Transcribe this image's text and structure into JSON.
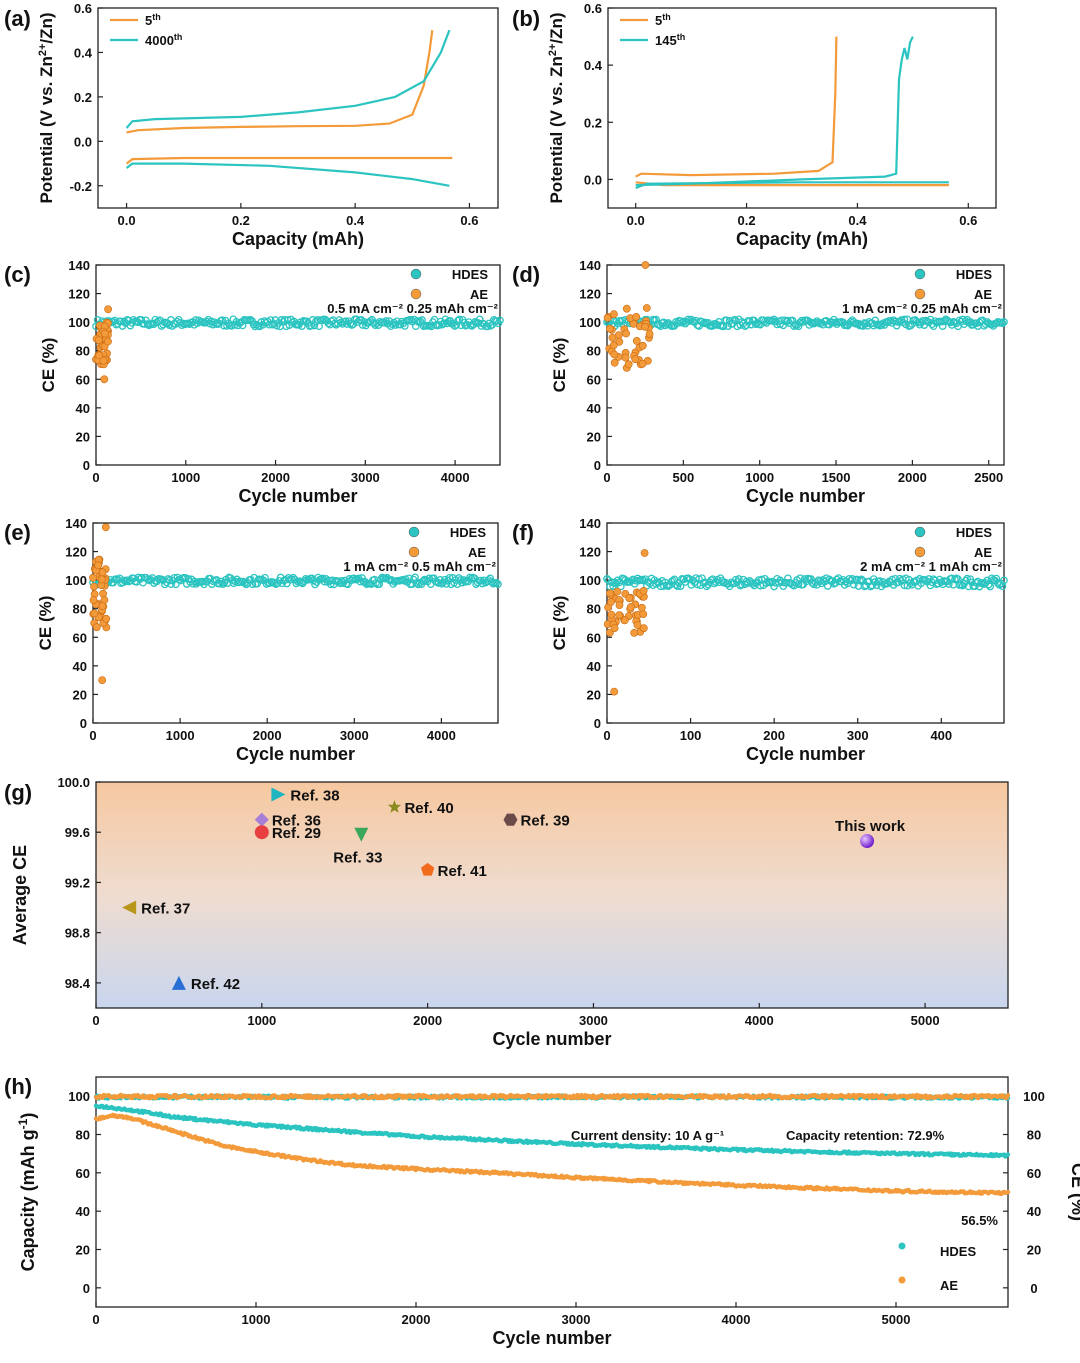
{
  "chart_data": [
    {
      "id": "a",
      "type": "line",
      "panel_label": "(a)",
      "xlabel": "Capacity (mAh)",
      "ylabel": "Potential (V vs. Zn",
      "xlim": [
        -0.05,
        0.65
      ],
      "ylim": [
        -0.3,
        0.6
      ],
      "xticks": [
        "0.0",
        "0.2",
        "0.4",
        "0.6"
      ],
      "yticks": [
        "-0.2",
        "0.0",
        "0.2",
        "0.4",
        "0.6"
      ],
      "xtick_values": [
        0.0,
        0.2,
        0.4,
        0.6
      ],
      "ytick_values": [
        -0.2,
        0.0,
        0.2,
        0.4,
        0.6
      ],
      "series": [
        {
          "name": "5",
          "sup": "th",
          "color": "#f39a3a",
          "charge": [
            [
              0.0,
              0.04
            ],
            [
              0.02,
              0.05
            ],
            [
              0.1,
              0.06
            ],
            [
              0.2,
              0.065
            ],
            [
              0.3,
              0.068
            ],
            [
              0.4,
              0.07
            ],
            [
              0.46,
              0.08
            ],
            [
              0.5,
              0.12
            ],
            [
              0.52,
              0.25
            ],
            [
              0.53,
              0.4
            ],
            [
              0.535,
              0.5
            ]
          ],
          "discharge": [
            [
              0.0,
              -0.1
            ],
            [
              0.01,
              -0.08
            ],
            [
              0.1,
              -0.075
            ],
            [
              0.3,
              -0.075
            ],
            [
              0.45,
              -0.075
            ],
            [
              0.57,
              -0.075
            ]
          ]
        },
        {
          "name": "4000",
          "sup": "th",
          "color": "#2bc4c0",
          "charge": [
            [
              0.0,
              0.06
            ],
            [
              0.01,
              0.09
            ],
            [
              0.05,
              0.1
            ],
            [
              0.2,
              0.11
            ],
            [
              0.3,
              0.13
            ],
            [
              0.4,
              0.16
            ],
            [
              0.47,
              0.2
            ],
            [
              0.52,
              0.27
            ],
            [
              0.55,
              0.4
            ],
            [
              0.565,
              0.5
            ]
          ],
          "discharge": [
            [
              0.0,
              -0.12
            ],
            [
              0.01,
              -0.1
            ],
            [
              0.1,
              -0.1
            ],
            [
              0.25,
              -0.11
            ],
            [
              0.4,
              -0.14
            ],
            [
              0.5,
              -0.17
            ],
            [
              0.565,
              -0.2
            ]
          ]
        }
      ]
    },
    {
      "id": "b",
      "type": "line",
      "panel_label": "(b)",
      "xlabel": "Capacity (mAh)",
      "ylabel": "Potential (V vs. Zn",
      "xlim": [
        -0.05,
        0.65
      ],
      "ylim": [
        -0.1,
        0.6
      ],
      "xticks": [
        "0.0",
        "0.2",
        "0.4",
        "0.6"
      ],
      "yticks": [
        "0.0",
        "0.2",
        "0.4",
        "0.6"
      ],
      "xtick_values": [
        0.0,
        0.2,
        0.4,
        0.6
      ],
      "ytick_values": [
        0.0,
        0.2,
        0.4,
        0.6
      ],
      "series": [
        {
          "name": "5",
          "sup": "th",
          "color": "#f39a3a",
          "charge": [
            [
              0.0,
              0.01
            ],
            [
              0.01,
              0.02
            ],
            [
              0.1,
              0.015
            ],
            [
              0.25,
              0.02
            ],
            [
              0.33,
              0.03
            ],
            [
              0.355,
              0.06
            ],
            [
              0.36,
              0.3
            ],
            [
              0.362,
              0.5
            ]
          ],
          "discharge": [
            [
              0.0,
              -0.01
            ],
            [
              0.05,
              -0.02
            ],
            [
              0.3,
              -0.02
            ],
            [
              0.565,
              -0.02
            ]
          ]
        },
        {
          "name": "145",
          "sup": "th",
          "color": "#2bc4c0",
          "charge": [
            [
              0.0,
              -0.02
            ],
            [
              0.1,
              -0.015
            ],
            [
              0.3,
              0.0
            ],
            [
              0.45,
              0.01
            ],
            [
              0.47,
              0.02
            ],
            [
              0.475,
              0.35
            ],
            [
              0.48,
              0.42
            ],
            [
              0.485,
              0.46
            ],
            [
              0.49,
              0.42
            ],
            [
              0.495,
              0.48
            ],
            [
              0.5,
              0.5
            ]
          ],
          "discharge": [
            [
              0.0,
              -0.03
            ],
            [
              0.02,
              -0.015
            ],
            [
              0.3,
              -0.01
            ],
            [
              0.565,
              -0.01
            ]
          ]
        }
      ]
    },
    {
      "id": "c",
      "type": "scatter",
      "panel_label": "(c)",
      "xlabel": "Cycle number",
      "ylabel": "CE (%)",
      "xlim": [
        0,
        4500
      ],
      "ylim": [
        0,
        140
      ],
      "xticks": [
        "0",
        "1000",
        "2000",
        "3000",
        "4000"
      ],
      "xtick_values": [
        0,
        1000,
        2000,
        3000,
        4000
      ],
      "yticks": [
        "0",
        "20",
        "40",
        "60",
        "80",
        "100",
        "120",
        "140"
      ],
      "ytick_values": [
        0,
        20,
        40,
        60,
        80,
        100,
        120,
        140
      ],
      "condition": "0.5 mA cm⁻² 0.25 mAh cm⁻²",
      "series": [
        {
          "name": "HDES",
          "color": "#2bc4c0",
          "x_range": [
            0,
            4500
          ],
          "mean": 99.5,
          "spread": 2.5
        },
        {
          "name": "AE",
          "color": "#f39a3a",
          "x_range": [
            0,
            140
          ],
          "mean": 85,
          "spread": 15,
          "max": 109,
          "min": 60
        }
      ]
    },
    {
      "id": "d",
      "type": "scatter",
      "panel_label": "(d)",
      "xlabel": "Cycle number",
      "ylabel": "CE (%)",
      "xlim": [
        0,
        2600
      ],
      "ylim": [
        0,
        140
      ],
      "xticks": [
        "0",
        "500",
        "1000",
        "1500",
        "2000",
        "2500"
      ],
      "xtick_values": [
        0,
        500,
        1000,
        1500,
        2000,
        2500
      ],
      "yticks": [
        "0",
        "20",
        "40",
        "60",
        "80",
        "100",
        "120",
        "140"
      ],
      "ytick_values": [
        0,
        20,
        40,
        60,
        80,
        100,
        120,
        140
      ],
      "condition": "1 mA cm⁻² 0.25 mAh cm⁻²",
      "series": [
        {
          "name": "HDES",
          "color": "#2bc4c0",
          "x_range": [
            0,
            2600
          ],
          "mean": 99.5,
          "spread": 2.5
        },
        {
          "name": "AE",
          "color": "#f39a3a",
          "x_range": [
            0,
            280
          ],
          "mean": 90,
          "spread": 20,
          "max": 140,
          "min": 68
        }
      ]
    },
    {
      "id": "e",
      "type": "scatter",
      "panel_label": "(e)",
      "xlabel": "Cycle number",
      "ylabel": "CE (%)",
      "xlim": [
        0,
        4650
      ],
      "ylim": [
        0,
        140
      ],
      "xticks": [
        "0",
        "1000",
        "2000",
        "3000",
        "4000"
      ],
      "xtick_values": [
        0,
        1000,
        2000,
        3000,
        4000
      ],
      "yticks": [
        "0",
        "20",
        "40",
        "60",
        "80",
        "100",
        "120",
        "140"
      ],
      "ytick_values": [
        0,
        20,
        40,
        60,
        80,
        100,
        120,
        140
      ],
      "condition": "1 mA cm⁻² 0.5 mAh cm⁻²",
      "series": [
        {
          "name": "HDES",
          "color": "#2bc4c0",
          "x_range": [
            0,
            4650
          ],
          "mean": 99.5,
          "spread": 2.5
        },
        {
          "name": "AE",
          "color": "#f39a3a",
          "x_range": [
            0,
            160
          ],
          "mean": 90,
          "spread": 25,
          "max": 137,
          "min": 30
        }
      ]
    },
    {
      "id": "f",
      "type": "scatter",
      "panel_label": "(f)",
      "xlabel": "Cycle number",
      "ylabel": "CE (%)",
      "xlim": [
        0,
        475
      ],
      "ylim": [
        0,
        140
      ],
      "xticks": [
        "0",
        "100",
        "200",
        "300",
        "400"
      ],
      "xtick_values": [
        0,
        100,
        200,
        300,
        400
      ],
      "yticks": [
        "0",
        "20",
        "40",
        "60",
        "80",
        "100",
        "120",
        "140"
      ],
      "ytick_values": [
        0,
        20,
        40,
        60,
        80,
        100,
        120,
        140
      ],
      "condition": "2 mA cm⁻² 1 mAh cm⁻²",
      "series": [
        {
          "name": "HDES",
          "color": "#2bc4c0",
          "x_range": [
            0,
            475
          ],
          "mean": 98.5,
          "spread": 3
        },
        {
          "name": "AE",
          "color": "#f39a3a",
          "x_range": [
            0,
            45
          ],
          "mean": 78,
          "spread": 15,
          "max": 119,
          "min": 22
        }
      ]
    },
    {
      "id": "g",
      "type": "scatter",
      "panel_label": "(g)",
      "xlabel": "Cycle number",
      "ylabel": "Average CE",
      "xlim": [
        0,
        5500
      ],
      "ylim": [
        98.2,
        100.0
      ],
      "xticks": [
        "0",
        "1000",
        "2000",
        "3000",
        "4000",
        "5000"
      ],
      "xtick_values": [
        0,
        1000,
        2000,
        3000,
        4000,
        5000
      ],
      "yticks": [
        "98.4",
        "98.8",
        "99.2",
        "99.6",
        "100.0"
      ],
      "ytick_values": [
        98.4,
        98.8,
        99.2,
        99.6,
        100.0
      ],
      "points": [
        {
          "label": "Ref. 38",
          "x": 1100,
          "y": 99.9,
          "marker": "tri-right",
          "color": "#1fb5c0"
        },
        {
          "label": "Ref. 40",
          "x": 1800,
          "y": 99.8,
          "marker": "star",
          "color": "#8a8a1e"
        },
        {
          "label": "Ref. 39",
          "x": 2500,
          "y": 99.7,
          "marker": "hexagon",
          "color": "#6b4a4a"
        },
        {
          "label": "Ref. 36",
          "x": 1000,
          "y": 99.7,
          "marker": "diamond",
          "color": "#a77fd6"
        },
        {
          "label": "Ref. 29",
          "x": 1000,
          "y": 99.6,
          "marker": "circle",
          "color": "#e84040"
        },
        {
          "label": "Ref. 33",
          "x": 1600,
          "y": 99.58,
          "marker": "tri-down",
          "color": "#3aa85a"
        },
        {
          "label": "This work",
          "x": 4650,
          "y": 99.53,
          "marker": "sphere",
          "color": "#8a2be2"
        },
        {
          "label": "Ref. 41",
          "x": 2000,
          "y": 99.3,
          "marker": "pentagon",
          "color": "#f26b1d"
        },
        {
          "label": "Ref. 37",
          "x": 200,
          "y": 99.0,
          "marker": "tri-left",
          "color": "#b8961a"
        },
        {
          "label": "Ref. 42",
          "x": 500,
          "y": 98.4,
          "marker": "tri-up",
          "color": "#2a6fd6"
        }
      ]
    },
    {
      "id": "h",
      "type": "scatter",
      "panel_label": "(h)",
      "xlabel": "Cycle number",
      "ylabel": "Capacity (mAh g",
      "y2label": "CE (%)",
      "xlim": [
        0,
        5700
      ],
      "ylim": [
        -10,
        110
      ],
      "y2lim": [
        -10,
        110
      ],
      "xticks": [
        "0",
        "1000",
        "2000",
        "3000",
        "4000",
        "5000"
      ],
      "xtick_values": [
        0,
        1000,
        2000,
        3000,
        4000,
        5000
      ],
      "yticks": [
        "0",
        "20",
        "40",
        "60",
        "80",
        "100"
      ],
      "ytick_values": [
        0,
        20,
        40,
        60,
        80,
        100
      ],
      "annotation": "Current density: 10 A g⁻¹",
      "retention_hdes": "Capacity retention: 72.9%",
      "retention_ae": "56.5%",
      "series": [
        {
          "name": "HDES",
          "color": "#2bc4c0",
          "capacity": [
            [
              0,
              95
            ],
            [
              200,
              93
            ],
            [
              500,
              89
            ],
            [
              1000,
              85
            ],
            [
              1500,
              82
            ],
            [
              2000,
              79
            ],
            [
              2500,
              77
            ],
            [
              3000,
              75
            ],
            [
              3500,
              73.5
            ],
            [
              4000,
              72
            ],
            [
              4500,
              71
            ],
            [
              5000,
              70
            ],
            [
              5700,
              69
            ]
          ],
          "ce": 99.5
        },
        {
          "name": "AE",
          "color": "#f39a3a",
          "capacity": [
            [
              0,
              88
            ],
            [
              100,
              90
            ],
            [
              200,
              89
            ],
            [
              400,
              84
            ],
            [
              600,
              79
            ],
            [
              800,
              74
            ],
            [
              1000,
              71
            ],
            [
              1300,
              67
            ],
            [
              1600,
              64
            ],
            [
              2000,
              62
            ],
            [
              2500,
              60
            ],
            [
              3000,
              57.5
            ],
            [
              3500,
              55.5
            ],
            [
              4000,
              53.5
            ],
            [
              4500,
              52
            ],
            [
              5000,
              50.5
            ],
            [
              5700,
              49.5
            ]
          ],
          "ce": 99.8
        }
      ]
    }
  ]
}
